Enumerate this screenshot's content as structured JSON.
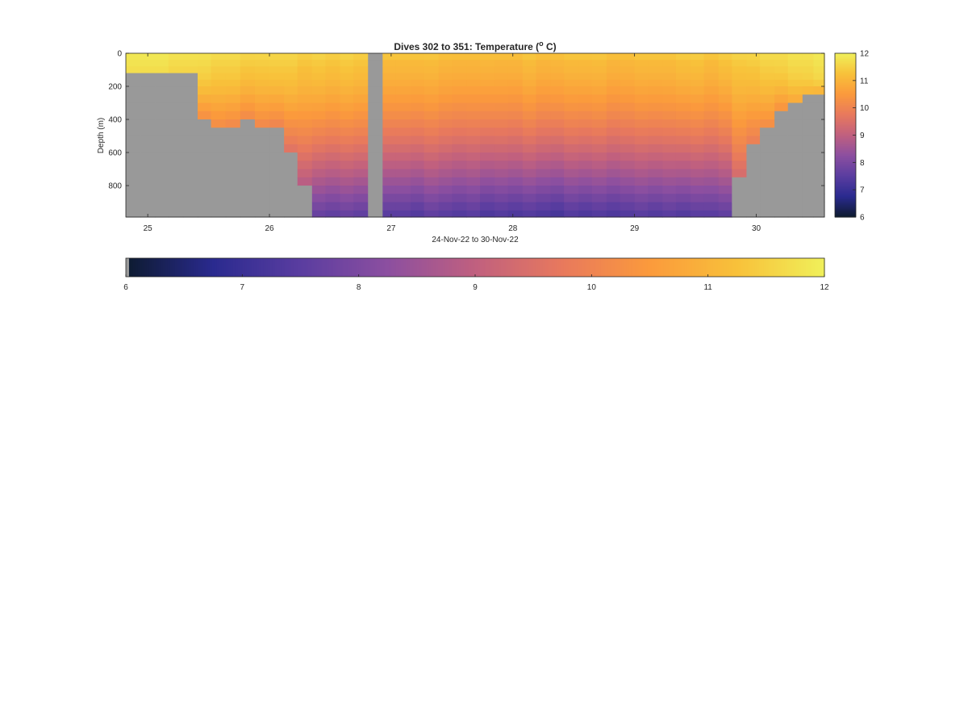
{
  "chart_data": {
    "type": "heatmap",
    "title": "Dives 302 to 351: Temperature (",
    "title_superscript": "o",
    "title_suffix": " C)",
    "xlabel": "24-Nov-22 to 30-Nov-22",
    "ylabel": "Depth (m)",
    "xlim": [
      24.82,
      30.56
    ],
    "ylim": [
      0,
      990
    ],
    "y_reversed": true,
    "x_ticks": [
      25,
      26,
      27,
      28,
      29,
      30
    ],
    "x_tick_labels": [
      "25",
      "26",
      "27",
      "28",
      "29",
      "30"
    ],
    "y_ticks": [
      0,
      200,
      400,
      600,
      800
    ],
    "y_tick_labels": [
      "0",
      "200",
      "400",
      "600",
      "800"
    ],
    "color_range": [
      6,
      12
    ],
    "colormap": [
      "#0d1b2f",
      "#2a2a8f",
      "#5a3da0",
      "#8c4fa0",
      "#c0607f",
      "#e8795d",
      "#fb9a3c",
      "#f8c13a",
      "#f0f05a"
    ],
    "nan_color": "#999999",
    "colorbar_right": {
      "ticks": [
        6,
        7,
        8,
        9,
        10,
        11,
        12
      ],
      "tick_labels": [
        "6",
        "7",
        "8",
        "9",
        "10",
        "11",
        "12"
      ]
    },
    "colorbar_bottom": {
      "ticks": [
        6,
        7,
        8,
        9,
        10,
        11,
        12
      ],
      "tick_labels": [
        "6",
        "7",
        "8",
        "9",
        "10",
        "11",
        "12"
      ]
    },
    "depth_bins": [
      0,
      40,
      80,
      120,
      160,
      200,
      250,
      300,
      350,
      400,
      450,
      500,
      550,
      600,
      650,
      700,
      750,
      800,
      850,
      900,
      950,
      990
    ],
    "dive_edges": [
      24.82,
      24.94,
      25.06,
      25.17,
      25.29,
      25.41,
      25.52,
      25.64,
      25.76,
      25.88,
      26.0,
      26.12,
      26.23,
      26.35,
      26.46,
      26.58,
      26.69,
      26.81,
      26.93,
      27.04,
      27.16,
      27.27,
      27.39,
      27.5,
      27.62,
      27.73,
      27.85,
      27.96,
      28.08,
      28.19,
      28.31,
      28.42,
      28.54,
      28.65,
      28.77,
      28.88,
      29.0,
      29.11,
      29.23,
      29.34,
      29.46,
      29.57,
      29.69,
      29.8,
      29.92,
      30.03,
      30.15,
      30.26,
      30.38,
      30.47,
      30.56
    ],
    "dive_max_depth": [
      130,
      130,
      130,
      130,
      130,
      380,
      440,
      440,
      420,
      440,
      440,
      600,
      800,
      990,
      990,
      990,
      990,
      0,
      990,
      990,
      990,
      990,
      990,
      990,
      990,
      990,
      990,
      990,
      990,
      990,
      990,
      990,
      990,
      990,
      990,
      990,
      990,
      990,
      990,
      990,
      990,
      990,
      990,
      730,
      530,
      440,
      330,
      320,
      270,
      230
    ],
    "surface_temp": [
      11.9,
      11.9,
      11.9,
      11.8,
      11.8,
      11.8,
      11.7,
      11.7,
      11.6,
      11.6,
      11.6,
      11.6,
      11.5,
      11.6,
      11.5,
      11.6,
      11.5,
      11.5,
      11.4,
      11.4,
      11.4,
      11.4,
      11.3,
      11.3,
      11.3,
      11.3,
      11.3,
      11.3,
      11.4,
      11.3,
      11.3,
      11.4,
      11.4,
      11.4,
      11.3,
      11.3,
      11.4,
      11.4,
      11.4,
      11.5,
      11.5,
      11.4,
      11.5,
      11.6,
      11.6,
      11.7,
      11.7,
      11.8,
      11.8,
      11.9
    ],
    "thermocline_depth": [
      160,
      150,
      150,
      140,
      130,
      120,
      110,
      110,
      100,
      110,
      120,
      120,
      100,
      80,
      90,
      80,
      90,
      0,
      60,
      60,
      60,
      70,
      70,
      60,
      60,
      70,
      60,
      60,
      70,
      60,
      70,
      60,
      60,
      70,
      60,
      70,
      60,
      60,
      60,
      60,
      70,
      60,
      70,
      80,
      100,
      110,
      120,
      130,
      140,
      150
    ],
    "deep_temp": [
      10.6,
      10.6,
      10.5,
      10.5,
      10.4,
      10.3,
      10.2,
      10.1,
      10.0,
      10.1,
      10.0,
      9.5,
      8.8,
      7.6,
      7.5,
      7.6,
      7.5,
      0,
      7.4,
      7.4,
      7.3,
      7.5,
      7.4,
      7.3,
      7.4,
      7.2,
      7.3,
      7.2,
      7.3,
      7.2,
      7.1,
      7.3,
      7.2,
      7.3,
      7.2,
      7.3,
      7.4,
      7.3,
      7.4,
      7.3,
      7.4,
      7.4,
      7.5,
      9.4,
      9.9,
      10.2,
      10.4,
      10.6,
      10.8,
      11.0
    ]
  }
}
